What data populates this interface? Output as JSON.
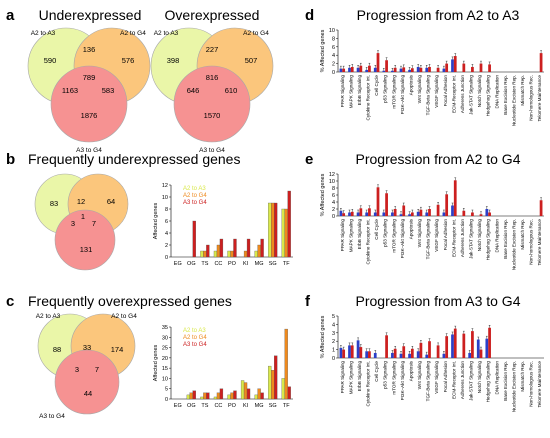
{
  "colors": {
    "blue": "#2b3fc8",
    "red": "#cc1f1f",
    "yellow": "#d9e84a",
    "orange": "#ee8a1e",
    "circle_a2a3": "#e7f59a",
    "circle_a2g4": "#fbbd66",
    "circle_a3g4": "#f57f7f"
  },
  "panels": {
    "a": {
      "label": "a",
      "titles": [
        "Underexpressed",
        "Overexpressed"
      ]
    },
    "b": {
      "label": "b",
      "title": "Frequently underexpressed genes"
    },
    "c": {
      "label": "c",
      "title": "Frequently overexpressed genes"
    },
    "d": {
      "label": "d",
      "title": "Progression from A2 to A3"
    },
    "e": {
      "label": "e",
      "title": "Progression from A2 to G4"
    },
    "f": {
      "label": "f",
      "title": "Progression from A3 to G4"
    }
  },
  "venn_labels": {
    "a2a3": "A2 to A3",
    "a2g4": "A2 to G4",
    "a3g4": "A3 to G4"
  },
  "venns": {
    "under": {
      "a_only": "590",
      "ab": "136",
      "b_only": "576",
      "abc": "789",
      "ac": "1163",
      "bc": "583",
      "c_only": "1876"
    },
    "over": {
      "a_only": "398",
      "ab": "227",
      "b_only": "507",
      "abc": "816",
      "ac": "646",
      "bc": "610",
      "c_only": "1570"
    },
    "freq_under": {
      "a_only": "83",
      "ab": "12",
      "b_only": "64",
      "abc": "1",
      "ac": "3",
      "bc": "7",
      "c_only": "131"
    },
    "freq_over": {
      "a_only": "88",
      "ab": "33",
      "b_only": "174",
      "abc": "",
      "ac": "3",
      "bc": "7",
      "c_only": "44"
    }
  },
  "chart_data": [
    {
      "id": "b_bar",
      "type": "bar",
      "ylabel": "Affected genes",
      "ylim": [
        0,
        12
      ],
      "yticks": [
        0,
        2,
        4,
        6,
        8,
        10,
        12
      ],
      "categories": [
        "EG",
        "OG",
        "TS",
        "CC",
        "PO",
        "KI",
        "MG",
        "SG",
        "TF"
      ],
      "legend": [
        "A2 to A3",
        "A2 to G4",
        "A3 to G4"
      ],
      "series": [
        {
          "name": "A2 to A3",
          "values": [
            0,
            0,
            1,
            1,
            1,
            0,
            1,
            9,
            8
          ]
        },
        {
          "name": "A2 to G4",
          "values": [
            0,
            0,
            1,
            2,
            1,
            1,
            2,
            9,
            8
          ]
        },
        {
          "name": "A3 to G4",
          "values": [
            0,
            6,
            2,
            3,
            3,
            3,
            3,
            9,
            11
          ]
        }
      ]
    },
    {
      "id": "c_bar",
      "type": "bar",
      "ylabel": "Affected genes",
      "ylim": [
        0,
        35
      ],
      "yticks": [
        0,
        5,
        10,
        15,
        20,
        25,
        30,
        35
      ],
      "categories": [
        "EG",
        "OG",
        "TS",
        "CC",
        "PO",
        "KI",
        "MG",
        "SG",
        "TF"
      ],
      "legend": [
        "A2 to A3",
        "A2 to G4",
        "A3 to G4"
      ],
      "series": [
        {
          "name": "A2 to A3",
          "values": [
            0,
            2,
            1,
            1,
            2,
            9,
            2,
            16,
            10
          ]
        },
        {
          "name": "A2 to G4",
          "values": [
            0,
            3,
            3,
            3,
            3,
            8,
            5,
            14,
            34
          ]
        },
        {
          "name": "A3 to G4",
          "values": [
            0,
            4,
            3,
            5,
            4,
            5,
            3,
            21,
            6
          ]
        }
      ]
    },
    {
      "id": "d_bar",
      "type": "bar",
      "ylabel": "% Affected genes",
      "ylim": [
        0,
        10
      ],
      "yticks": [
        0,
        2,
        4,
        6,
        8,
        10
      ],
      "categories": [
        "PPAR Signaling",
        "MAPK Signaling",
        "ErbB Signaling",
        "Cytokine Receptor Int.",
        "Cell Cycle",
        "p53 Signaling",
        "mTOR Signaling",
        "PI3K–Akt Signaling",
        "Apoptosis",
        "Wnt Signaling",
        "TGF-Beta Signaling",
        "VEGF Signaling",
        "Focal Adhesion",
        "ECM-Receptor Int.",
        "Adherens Junction",
        "Jak-STAT Signaling",
        "Notch Signaling",
        "Hedgehog Signaling",
        "DNA Replication",
        "Base Excision Rep.",
        "Nucleotide Excision Rep.",
        "Mismatch Rep.",
        "Non-homologous Rec.",
        "Telomere Maintenance"
      ],
      "series": [
        {
          "name": "blue",
          "values": [
            0.8,
            1.0,
            1.0,
            0.5,
            1.0,
            0.3,
            0.3,
            0.8,
            0.5,
            1.2,
            1.0,
            0,
            0.8,
            3.0,
            0,
            0,
            0,
            0,
            0,
            0,
            0,
            0,
            0,
            0
          ]
        },
        {
          "name": "red",
          "values": [
            0.8,
            1.2,
            1.5,
            1.5,
            4.5,
            2.8,
            1.0,
            1.1,
            0.9,
            1.0,
            1.2,
            1.0,
            2.0,
            3.8,
            2.0,
            1.2,
            2.0,
            1.8,
            0,
            0,
            0,
            0,
            0,
            4.5
          ]
        }
      ]
    },
    {
      "id": "e_bar",
      "type": "bar",
      "ylabel": "% Affected genes",
      "ylim": [
        0,
        12
      ],
      "yticks": [
        0,
        2,
        4,
        6,
        8,
        10,
        12
      ],
      "categories": [
        "PPAR Signaling",
        "MAPK Signaling",
        "ErbB Signaling",
        "Cytokine Receptor Int.",
        "Cell Cycle",
        "p53 Signaling",
        "mTOR Signaling",
        "PI3K–Akt Signaling",
        "Apoptosis",
        "Wnt Signaling",
        "TGF-Beta Signaling",
        "VEGF Signaling",
        "Focal Adhesion",
        "ECM-Receptor Int.",
        "Adherens Junction",
        "Jak-STAT Signaling",
        "Notch Signaling",
        "Hedgehog Signaling",
        "DNA Replication",
        "Base Excision Rep.",
        "Nucleotide Excision Rep.",
        "Mismatch Rep.",
        "Non-homologous Rec.",
        "Telomere Maintenance"
      ],
      "series": [
        {
          "name": "blue",
          "values": [
            1.5,
            1.0,
            1.0,
            1.0,
            1.0,
            1.0,
            1.0,
            0.5,
            0.5,
            1.2,
            1.0,
            0,
            1.0,
            3.0,
            0,
            0,
            0,
            2.0,
            0,
            0,
            0,
            0,
            0,
            0
          ]
        },
        {
          "name": "red",
          "values": [
            0.8,
            1.2,
            2.2,
            2.2,
            8.2,
            6.5,
            2.0,
            3.0,
            1.0,
            1.8,
            2.0,
            3.2,
            6.2,
            10.2,
            1.5,
            1.0,
            0.5,
            1.0,
            0,
            0,
            0,
            0,
            0,
            4.5
          ]
        }
      ]
    },
    {
      "id": "f_bar",
      "type": "bar",
      "ylabel": "% Affected genes",
      "ylim": [
        0,
        5
      ],
      "yticks": [
        0,
        1,
        2,
        3,
        4,
        5
      ],
      "categories": [
        "PPAR Signaling",
        "MAPK Signaling",
        "ErbB Signaling",
        "Cytokine Receptor Int.",
        "Cell Cycle",
        "p53 Signaling",
        "mTOR Signaling",
        "PI3K–Akt Signaling",
        "Apoptosis",
        "Wnt Signaling",
        "TGF-Beta Signaling",
        "VEGF Signaling",
        "Focal Adhesion",
        "ECM-Receptor Int.",
        "Adherens Junction",
        "Jak-STAT Signaling",
        "Notch Signaling",
        "Hedgehog Signaling",
        "DNA Replication",
        "Base Excision Rep.",
        "Nucleotide Excision Rep.",
        "Mismatch Rep.",
        "Non-homologous Rec.",
        "Telomere Maintenance"
      ],
      "series": [
        {
          "name": "blue",
          "values": [
            1.2,
            1.5,
            2.1,
            0.8,
            0.6,
            0,
            0.6,
            0.5,
            0.5,
            0.8,
            0.4,
            0,
            0.5,
            2.8,
            0,
            0.6,
            2.2,
            2.3,
            0,
            0,
            0,
            0,
            0,
            0
          ]
        },
        {
          "name": "red",
          "values": [
            1.0,
            1.5,
            1.3,
            0.8,
            0,
            2.7,
            1.1,
            1.4,
            1.1,
            1.8,
            2.0,
            1.5,
            2.6,
            3.5,
            2.9,
            3.2,
            1.0,
            3.6,
            0,
            0,
            0,
            0,
            0,
            0
          ]
        }
      ]
    }
  ]
}
